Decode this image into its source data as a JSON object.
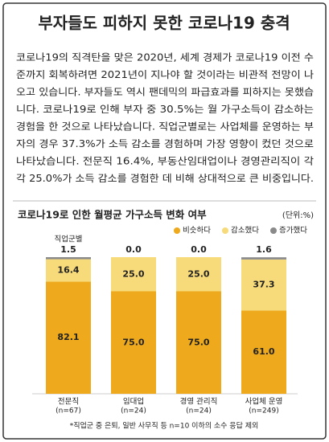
{
  "header": {
    "title": "부자들도 피하지 못한 코로나19 충격"
  },
  "body": {
    "lines": [
      "코로나19의 직격탄을 맞은 2020년, 세계 경제가 코로나19 이전 수",
      "준까지 회복하려면 2021년이 지나야 할 것이라는 비관적 전망이 나",
      "오고 있습니다. 부자들도 역시 팬데믹의 파급효과를 피하지는 못했습",
      "니다. 코로나19로 인해 부자 중 30.5%는 월 가구소득이 감소하는",
      "경험을 한 것으로 나타났습니다. 직업군별로는 사업체를 운영하는 부",
      "자의 경우 37.3%가 소득 감소를 경험하며 가장 영향이 컸던 것으로",
      "나타났습니다. 전문직 16.4%, 부동산임대업이나 경영관리직이 각",
      "각 25.0%가 소득 감소를 경험한 데 비해 상대적으로 큰 비중입니다."
    ]
  },
  "chart_data": {
    "type": "stacked_bar",
    "title": "코로나19로 인한 월평균 가구소득 변화 여부",
    "unit": "(단위:%)",
    "x_label": "직업군별",
    "categories": [
      "전문직",
      "임대업",
      "경영 관리직",
      "사업체 운영"
    ],
    "category_notes": [
      "(n=67)",
      "(n=24)",
      "(n=24)",
      "(n=249)"
    ],
    "series": [
      {
        "name": "비슷하다",
        "color": "#eea91c",
        "values": [
          82.1,
          75.0,
          75.0,
          61.0
        ],
        "value_labels": [
          "82.1",
          "75.0",
          "75.0",
          "61.0"
        ]
      },
      {
        "name": "감소했다",
        "color": "#f7da7a",
        "values": [
          16.4,
          25.0,
          25.0,
          37.3
        ],
        "value_labels": [
          "16.4",
          "25.0",
          "25.0",
          "37.3"
        ]
      },
      {
        "name": "증가했다",
        "color": "#8a8a8a",
        "values": [
          1.5,
          0.0,
          0.0,
          1.6
        ],
        "value_labels": [
          "1.5",
          "0.0",
          "0.0",
          "1.6"
        ]
      }
    ],
    "legend": "top-right",
    "footnote": "*직업군 중 은퇴, 일반 사무직 등 n=10 이하의 소수 응답 제외"
  }
}
